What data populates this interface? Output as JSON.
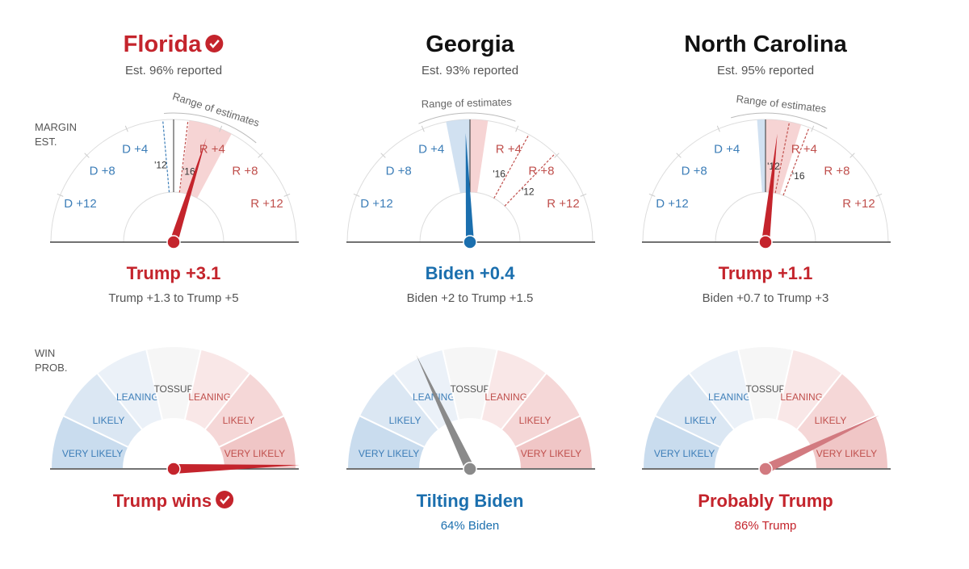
{
  "margin_axis": {
    "label_lines": [
      "MARGIN",
      "EST."
    ],
    "lim": [
      -16,
      16
    ],
    "ticks": [
      {
        "value": -12,
        "label": "D +12"
      },
      {
        "value": -8,
        "label": "D +8"
      },
      {
        "value": -4,
        "label": "D +4"
      },
      {
        "value": 4,
        "label": "R +4"
      },
      {
        "value": 8,
        "label": "R +8"
      },
      {
        "value": 12,
        "label": "R +12"
      }
    ],
    "range_title": "Range of estimates"
  },
  "win_axis": {
    "label_lines": [
      "WIN",
      "PROB."
    ],
    "lim": [
      0,
      100
    ],
    "sectors": [
      "VERY LIKELY",
      "LIKELY",
      "LEANING",
      "TOSSUP",
      "LEANING",
      "LIKELY",
      "VERY LIKELY"
    ]
  },
  "states": [
    {
      "name": "Florida",
      "called": true,
      "reported": "Est. 96% reported",
      "margin": 3.1,
      "range": [
        1.3,
        5
      ],
      "margin_label": "Trump +3.1",
      "range_label": "Trump +1.3 to Trump +5",
      "history": [
        {
          "label": "'12",
          "value": -0.9
        },
        {
          "label": "'16",
          "value": 1.2
        }
      ],
      "prob": 99,
      "prob_for": "R",
      "outcome": "Trump wins",
      "color": "#c4242c",
      "needle_color": "#c4242c"
    },
    {
      "name": "Georgia",
      "called": false,
      "reported": "Est. 93% reported",
      "margin": -0.4,
      "range": [
        -2,
        1.5
      ],
      "margin_label": "Biden +0.4",
      "range_label": "Biden +2 to Trump +1.5",
      "history": [
        {
          "label": "'16",
          "value": 5.1
        },
        {
          "label": "'12",
          "value": 7.8
        }
      ],
      "prob": 64,
      "prob_for": "D",
      "outcome": "Tilting Biden",
      "prob_label": "64% Biden",
      "color": "#1b6fae",
      "needle_color": "#8a8a8a"
    },
    {
      "name": "North Carolina",
      "called": false,
      "reported": "Est. 95% reported",
      "margin": 1.1,
      "range": [
        -0.7,
        3
      ],
      "margin_label": "Trump +1.1",
      "range_label": "Biden +0.7 to Trump +3",
      "history": [
        {
          "label": "'12",
          "value": 2.0
        },
        {
          "label": "'16",
          "value": 3.7
        }
      ],
      "prob": 86,
      "prob_for": "R",
      "outcome": "Probably Trump",
      "prob_label": "86% Trump",
      "color": "#c4242c",
      "needle_color": "#d27a80"
    }
  ]
}
